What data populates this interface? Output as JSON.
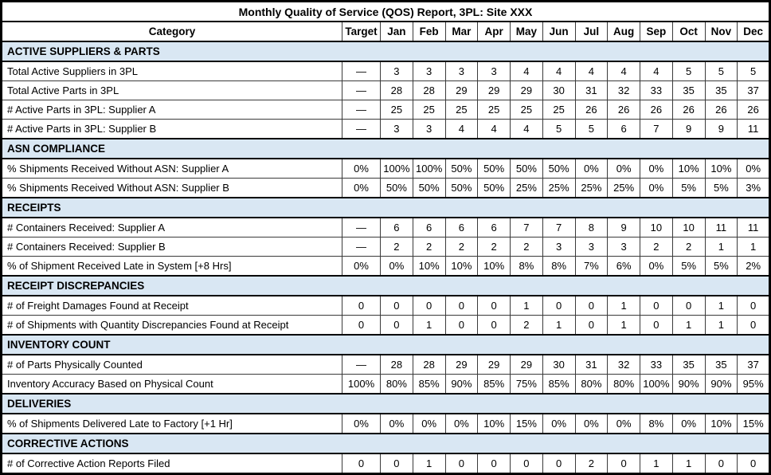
{
  "title": "Monthly Quality of Service (QOS) Report, 3PL: Site XXX",
  "columns": [
    "Category",
    "Target",
    "Jan",
    "Feb",
    "Mar",
    "Apr",
    "May",
    "Jun",
    "Jul",
    "Aug",
    "Sep",
    "Oct",
    "Nov",
    "Dec"
  ],
  "sections": [
    {
      "header": "ACTIVE SUPPLIERS & PARTS",
      "rows": [
        {
          "label": "Total Active Suppliers in 3PL",
          "target": "—",
          "values": [
            "3",
            "3",
            "3",
            "3",
            "4",
            "4",
            "4",
            "4",
            "4",
            "5",
            "5",
            "5"
          ]
        },
        {
          "label": "Total Active Parts in 3PL",
          "target": "—",
          "values": [
            "28",
            "28",
            "29",
            "29",
            "29",
            "30",
            "31",
            "32",
            "33",
            "35",
            "35",
            "37"
          ]
        },
        {
          "label": "# Active Parts in 3PL: Supplier A",
          "target": "—",
          "values": [
            "25",
            "25",
            "25",
            "25",
            "25",
            "25",
            "26",
            "26",
            "26",
            "26",
            "26",
            "26"
          ]
        },
        {
          "label": "# Active Parts in 3PL: Supplier B",
          "target": "—",
          "values": [
            "3",
            "3",
            "4",
            "4",
            "4",
            "5",
            "5",
            "6",
            "7",
            "9",
            "9",
            "11"
          ]
        }
      ]
    },
    {
      "header": "ASN COMPLIANCE",
      "rows": [
        {
          "label": "% Shipments Received Without ASN: Supplier A",
          "target": "0%",
          "values": [
            "100%",
            "100%",
            "50%",
            "50%",
            "50%",
            "50%",
            "0%",
            "0%",
            "0%",
            "10%",
            "10%",
            "0%"
          ]
        },
        {
          "label": "% Shipments Received Without ASN: Supplier B",
          "target": "0%",
          "values": [
            "50%",
            "50%",
            "50%",
            "50%",
            "25%",
            "25%",
            "25%",
            "25%",
            "0%",
            "5%",
            "5%",
            "3%"
          ]
        }
      ]
    },
    {
      "header": "RECEIPTS",
      "rows": [
        {
          "label": "# Containers Received: Supplier A",
          "target": "—",
          "values": [
            "6",
            "6",
            "6",
            "6",
            "7",
            "7",
            "8",
            "9",
            "10",
            "10",
            "11",
            "11"
          ]
        },
        {
          "label": "# Containers Received: Supplier B",
          "target": "—",
          "values": [
            "2",
            "2",
            "2",
            "2",
            "2",
            "3",
            "3",
            "3",
            "2",
            "2",
            "1",
            "1"
          ]
        },
        {
          "label": "% of Shipment Received Late in System [+8 Hrs]",
          "target": "0%",
          "values": [
            "0%",
            "10%",
            "10%",
            "10%",
            "8%",
            "8%",
            "7%",
            "6%",
            "0%",
            "5%",
            "5%",
            "2%"
          ]
        }
      ]
    },
    {
      "header": "RECEIPT DISCREPANCIES",
      "rows": [
        {
          "label": "# of Freight Damages Found at Receipt",
          "target": "0",
          "values": [
            "0",
            "0",
            "0",
            "0",
            "1",
            "0",
            "0",
            "1",
            "0",
            "0",
            "1",
            "0"
          ]
        },
        {
          "label": "# of Shipments with Quantity Discrepancies Found at Receipt",
          "target": "0",
          "values": [
            "0",
            "1",
            "0",
            "0",
            "2",
            "1",
            "0",
            "1",
            "0",
            "1",
            "1",
            "0"
          ]
        }
      ]
    },
    {
      "header": "INVENTORY COUNT",
      "rows": [
        {
          "label": "# of Parts Physically Counted",
          "target": "—",
          "values": [
            "28",
            "28",
            "29",
            "29",
            "29",
            "30",
            "31",
            "32",
            "33",
            "35",
            "35",
            "37"
          ]
        },
        {
          "label": "Inventory Accuracy Based on Physical Count",
          "target": "100%",
          "values": [
            "80%",
            "85%",
            "90%",
            "85%",
            "75%",
            "85%",
            "80%",
            "80%",
            "100%",
            "90%",
            "90%",
            "95%"
          ]
        }
      ]
    },
    {
      "header": "DELIVERIES",
      "rows": [
        {
          "label": "% of Shipments Delivered Late to Factory [+1 Hr]",
          "target": "0%",
          "values": [
            "0%",
            "0%",
            "0%",
            "10%",
            "15%",
            "0%",
            "0%",
            "0%",
            "8%",
            "0%",
            "10%",
            "15%"
          ]
        }
      ]
    },
    {
      "header": "CORRECTIVE ACTIONS",
      "rows": [
        {
          "label": "# of Corrective Action Reports Filed",
          "target": "0",
          "values": [
            "0",
            "1",
            "0",
            "0",
            "0",
            "0",
            "2",
            "0",
            "1",
            "1",
            "0",
            "0"
          ]
        }
      ]
    }
  ],
  "colors": {
    "section_header_bg": "#D9E7F3",
    "border": "#000000",
    "grid_line": "#3a3a3a",
    "text": "#000000",
    "background": "#FFFFFF"
  }
}
